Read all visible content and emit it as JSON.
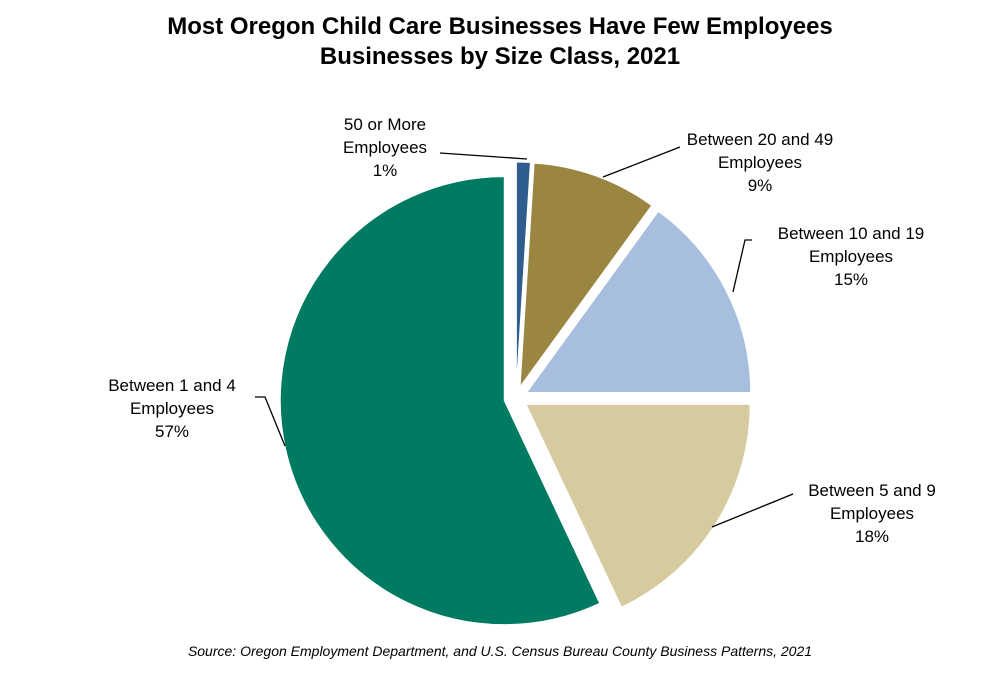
{
  "chart_data": {
    "type": "pie",
    "title": "Most Oregon Child Care Businesses Have Few Employees",
    "subtitle": "Businesses by Size Class, 2021",
    "source": "Source: Oregon Employment Department, and U.S. Census Bureau County Business Patterns, 2021",
    "legend": "none",
    "slices": [
      {
        "label_lines": [
          "50 or More",
          "Employees",
          "1%"
        ],
        "category": "50 or More Employees",
        "value": 1,
        "color": "#2F5E8E"
      },
      {
        "label_lines": [
          "Between 20 and 49",
          "Employees",
          "9%"
        ],
        "category": "Between 20 and 49 Employees",
        "value": 9,
        "color": "#9B8641"
      },
      {
        "label_lines": [
          "Between 10 and 19",
          "Employees",
          "15%"
        ],
        "category": "Between 10 and 19 Employees",
        "value": 15,
        "color": "#A7BEDE"
      },
      {
        "label_lines": [
          "Between 5 and 9",
          "Employees",
          "18%"
        ],
        "category": "Between 5 and 9 Employees",
        "value": 18,
        "color": "#D6CA9F"
      },
      {
        "label_lines": [
          "Between 1 and 4",
          "Employees",
          "57%"
        ],
        "category": "Between 1 and 4 Employees",
        "value": 57,
        "color": "#007A61"
      }
    ]
  }
}
